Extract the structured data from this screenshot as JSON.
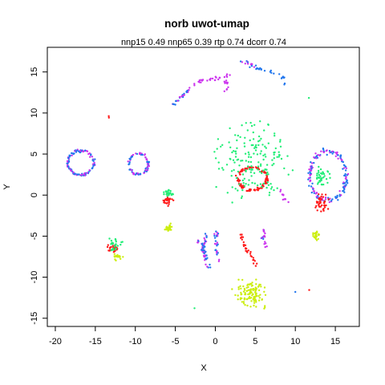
{
  "chart_data": {
    "type": "scatter",
    "title": "norb uwot-umap",
    "subtitle": "nnp15 0.49 nnp65 0.39 rtp 0.74 dcorr 0.74",
    "xlabel": "X",
    "ylabel": "Y",
    "xlim": [
      -21,
      18
    ],
    "ylim": [
      -16,
      18
    ],
    "x_ticks": [
      -20,
      -15,
      -10,
      -5,
      0,
      5,
      10,
      15
    ],
    "y_ticks": [
      -15,
      -10,
      -5,
      0,
      5,
      10,
      15
    ],
    "grid": false,
    "legend": "none",
    "colors": {
      "red": "#ff1a1a",
      "green": "#22ee77",
      "blue": "#2277ee",
      "magenta": "#cc33ee",
      "yellow": "#ccee11"
    },
    "clusters": [
      {
        "name": "",
        "shape": "ring",
        "center": [
          -16.8,
          3.9
        ],
        "radius": [
          1.6,
          1.5
        ],
        "colors": [
          "blue",
          "magenta"
        ],
        "count": 110
      },
      {
        "name": "",
        "shape": "ring",
        "center": [
          -9.6,
          3.8
        ],
        "radius": [
          1.2,
          1.3
        ],
        "colors": [
          "blue",
          "magenta"
        ],
        "count": 80
      },
      {
        "name": "",
        "shape": "ring",
        "center": [
          14.1,
          2.3
        ],
        "radius": [
          2.3,
          3.0
        ],
        "colors": [
          "blue",
          "magenta"
        ],
        "count": 150
      },
      {
        "name": "",
        "shape": "ring",
        "center": [
          4.6,
          2.0
        ],
        "radius": [
          1.8,
          1.4
        ],
        "colors": [
          "red"
        ],
        "count": 110
      },
      {
        "name": "",
        "shape": "blob",
        "center": [
          4.5,
          4.0
        ],
        "spread": [
          4.5,
          4.5
        ],
        "colors": [
          "green"
        ],
        "count": 170
      },
      {
        "name": "",
        "shape": "blob",
        "center": [
          13.2,
          2.2
        ],
        "spread": [
          0.9,
          1.0
        ],
        "colors": [
          "green"
        ],
        "count": 40
      },
      {
        "name": "",
        "shape": "blob",
        "center": [
          13.3,
          -0.9
        ],
        "spread": [
          0.7,
          1.0
        ],
        "colors": [
          "red"
        ],
        "count": 40
      },
      {
        "name": "",
        "shape": "blob",
        "center": [
          -5.9,
          -0.7
        ],
        "spread": [
          0.5,
          0.8
        ],
        "colors": [
          "red"
        ],
        "count": 30
      },
      {
        "name": "",
        "shape": "blob",
        "center": [
          -5.8,
          0.3
        ],
        "spread": [
          0.5,
          0.4
        ],
        "colors": [
          "green"
        ],
        "count": 25
      },
      {
        "name": "",
        "shape": "blob",
        "center": [
          -5.8,
          -4.0
        ],
        "spread": [
          0.4,
          0.5
        ],
        "colors": [
          "yellow"
        ],
        "count": 25
      },
      {
        "name": "",
        "shape": "blob",
        "center": [
          -12.8,
          -6.5
        ],
        "spread": [
          0.6,
          0.5
        ],
        "colors": [
          "red"
        ],
        "count": 30
      },
      {
        "name": "",
        "shape": "blob",
        "center": [
          -12.6,
          -6.1
        ],
        "spread": [
          0.8,
          0.7
        ],
        "colors": [
          "green"
        ],
        "count": 25
      },
      {
        "name": "",
        "shape": "blob",
        "center": [
          -12.2,
          -7.5
        ],
        "spread": [
          0.6,
          0.4
        ],
        "colors": [
          "yellow"
        ],
        "count": 20
      },
      {
        "name": "",
        "shape": "blob",
        "center": [
          4.5,
          -12.0
        ],
        "spread": [
          1.8,
          1.4
        ],
        "colors": [
          "yellow"
        ],
        "count": 120
      },
      {
        "name": "",
        "shape": "blob",
        "center": [
          12.6,
          -4.8
        ],
        "spread": [
          0.4,
          0.6
        ],
        "colors": [
          "yellow"
        ],
        "count": 25
      },
      {
        "name": "",
        "shape": "arc",
        "points": [
          [
            -1.6,
            -7.0
          ],
          [
            -1.7,
            -6.0
          ],
          [
            -2.2,
            -5.5
          ]
        ],
        "colors": [
          "blue",
          "magenta"
        ],
        "count": 25
      },
      {
        "name": "",
        "shape": "arc",
        "points": [
          [
            -0.6,
            -9.0
          ],
          [
            -1.2,
            -7.8
          ],
          [
            -1.4,
            -6.8
          ],
          [
            -1.3,
            -5.2
          ],
          [
            -1.2,
            -4.8
          ]
        ],
        "colors": [
          "blue",
          "magenta"
        ],
        "count": 35
      },
      {
        "name": "",
        "shape": "arc",
        "points": [
          [
            0.5,
            -8.0
          ],
          [
            0.2,
            -6.5
          ],
          [
            0.0,
            -5.0
          ],
          [
            0.3,
            -4.4
          ]
        ],
        "colors": [
          "blue",
          "magenta"
        ],
        "count": 25
      },
      {
        "name": "",
        "shape": "arc",
        "points": [
          [
            3.2,
            -4.7
          ],
          [
            3.6,
            -6.0
          ],
          [
            4.4,
            -7.2
          ],
          [
            5.2,
            -8.7
          ]
        ],
        "colors": [
          "red"
        ],
        "count": 30
      },
      {
        "name": "",
        "shape": "arc",
        "points": [
          [
            6.3,
            -3.8
          ],
          [
            6.0,
            -5.2
          ],
          [
            6.3,
            -6.4
          ]
        ],
        "colors": [
          "magenta",
          "blue"
        ],
        "count": 18
      },
      {
        "name": "",
        "shape": "arc",
        "points": [
          [
            -5.6,
            10.5
          ],
          [
            -5.0,
            11.4
          ],
          [
            -4.2,
            11.9
          ],
          [
            -3.3,
            13.0
          ],
          [
            -2.2,
            13.8
          ]
        ],
        "colors": [
          "blue",
          "magenta"
        ],
        "count": 30
      },
      {
        "name": "",
        "shape": "arc",
        "points": [
          [
            -2.2,
            13.8
          ],
          [
            -0.8,
            14.0
          ],
          [
            0.4,
            14.2
          ],
          [
            1.6,
            14.5
          ]
        ],
        "colors": [
          "magenta"
        ],
        "count": 25
      },
      {
        "name": "",
        "shape": "arc",
        "points": [
          [
            1.3,
            12.3
          ],
          [
            1.3,
            13.5
          ],
          [
            1.4,
            14.3
          ]
        ],
        "colors": [
          "magenta"
        ],
        "count": 12
      },
      {
        "name": "",
        "shape": "arc",
        "points": [
          [
            2.6,
            16.3
          ],
          [
            4.0,
            16.1
          ],
          [
            5.0,
            15.5
          ]
        ],
        "colors": [
          "blue",
          "magenta"
        ],
        "count": 14
      },
      {
        "name": "",
        "shape": "arc",
        "points": [
          [
            5.0,
            15.5
          ],
          [
            6.6,
            15.2
          ],
          [
            8.3,
            14.6
          ],
          [
            8.8,
            13.5
          ]
        ],
        "colors": [
          "blue"
        ],
        "count": 22
      },
      {
        "name": "",
        "shape": "arc",
        "points": [
          [
            8.0,
            0.8
          ],
          [
            8.6,
            -0.5
          ],
          [
            9.6,
            -1.3
          ]
        ],
        "colors": [
          "magenta"
        ],
        "count": 10
      },
      {
        "name": "",
        "shape": "blob",
        "center": [
          -13.3,
          9.5
        ],
        "spread": [
          0.1,
          0.1
        ],
        "colors": [
          "red"
        ],
        "count": 2
      },
      {
        "name": "",
        "shape": "blob",
        "center": [
          -2.6,
          -13.8
        ],
        "spread": [
          0.1,
          0.1
        ],
        "colors": [
          "green"
        ],
        "count": 1
      },
      {
        "name": "",
        "shape": "blob",
        "center": [
          10.0,
          -11.8
        ],
        "spread": [
          0.1,
          0.1
        ],
        "colors": [
          "blue"
        ],
        "count": 1
      },
      {
        "name": "",
        "shape": "blob",
        "center": [
          11.8,
          -11.5
        ],
        "spread": [
          0.1,
          0.1
        ],
        "colors": [
          "red"
        ],
        "count": 1
      },
      {
        "name": "",
        "shape": "blob",
        "center": [
          11.6,
          11.8
        ],
        "spread": [
          0.1,
          0.1
        ],
        "colors": [
          "green"
        ],
        "count": 1
      }
    ]
  }
}
